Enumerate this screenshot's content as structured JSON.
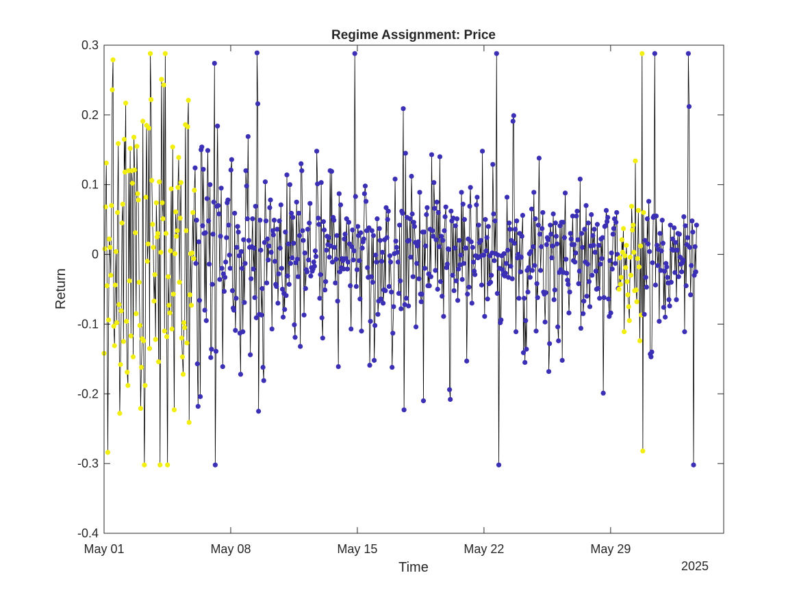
{
  "chart_data": {
    "type": "line",
    "title": "Regime Assignment: Price",
    "xlabel": "Time",
    "ylabel": "Return",
    "x_secondary_label": "2025",
    "xlim": [
      "2025-05-01",
      "2025-06-04T06:00"
    ],
    "ylim": [
      -0.4,
      0.3
    ],
    "grid": false,
    "legend": "none",
    "x_ticks": [
      {
        "value": "2025-05-01",
        "label": "May 01"
      },
      {
        "value": "2025-05-08",
        "label": "May 08"
      },
      {
        "value": "2025-05-15",
        "label": "May 15"
      },
      {
        "value": "2025-05-22",
        "label": "May 22"
      },
      {
        "value": "2025-05-29",
        "label": "May 29"
      }
    ],
    "y_ticks": [
      {
        "value": 0.3,
        "label": "0.3"
      },
      {
        "value": 0.2,
        "label": "0.2"
      },
      {
        "value": 0.1,
        "label": "0.1"
      },
      {
        "value": 0,
        "label": "0"
      },
      {
        "value": -0.1,
        "label": "-0.1"
      },
      {
        "value": -0.2,
        "label": "-0.2"
      },
      {
        "value": -0.3,
        "label": "-0.3"
      },
      {
        "value": -0.4,
        "label": "-0.4"
      }
    ],
    "x_start": "2025-05-01",
    "x_end": "2025-06-02T18:00",
    "line_color": "#000000",
    "regime_colors": {
      "1": "#3a2fb5",
      "2": "#f2ee0f"
    },
    "series": [
      {
        "values": [
          -0.142,
          0.008,
          0.068,
          0.131,
          -0.045,
          -0.284,
          -0.094,
          0.022,
          0.01,
          -0.03,
          0.07,
          0.236,
          0.279,
          -0.103,
          -0.131,
          -0.044,
          0.004,
          -0.098,
          0.06,
          0.159,
          -0.072,
          -0.228,
          -0.158,
          -0.081,
          0.045,
          0.072,
          -0.125,
          0.165,
          0.118,
          0.217,
          -0.096,
          -0.169,
          -0.188,
          0.12,
          -0.038,
          0.152,
          -0.117,
          0.12,
          0.102,
          -0.147,
          0.168,
          0.121,
          0.031,
          -0.085,
          0.155,
          0.087,
          0.078,
          -0.04,
          -0.102,
          -0.221,
          -0.162,
          -0.121,
          0.191,
          -0.124,
          -0.302,
          -0.188,
          0.082,
          0.185,
          -0.01,
          0.015,
          0.181,
          -0.135,
          0.288,
          0.222,
          0.106,
          0.043,
          0.01,
          -0.067,
          -0.029,
          -0.122,
          0.074,
          0.025,
          0.03,
          -0.154,
          0.104,
          -0.302,
          0.003,
          0.251,
          0.074,
          0.051,
          0.243,
          -0.11,
          0.288,
          0.03,
          -0.118,
          -0.302,
          -0.032,
          -0.073,
          -0.084,
          0.005,
          0.094,
          -0.107,
          0.154,
          -0.057,
          -0.223,
          0.001,
          0.061,
          0.026,
          0.034,
          0.096,
          0.139,
          -0.04,
          0.052,
          0.103,
          -0.12,
          -0.147,
          -0.172,
          -0.098,
          -0.105,
          0.186,
          0.034,
          -0.127,
          0.183,
          0.221,
          -0.241,
          -0.058,
          0.001,
          -0.073,
          0.002,
          0.06,
          -0.006,
          0.092,
          0.124,
          -0.013,
          0.049,
          -0.157,
          -0.218,
          0.018,
          -0.066,
          -0.204,
          0.15,
          0.154,
          0.041,
          0.122,
          0.03,
          -0.08,
          0.031,
          -0.095,
          0.08,
          0.149,
          0.048,
          -0.014,
          0.1,
          -0.148,
          -0.136,
          -0.043,
          0.029,
          0.075,
          0.274,
          -0.302,
          -0.139,
          0.069,
          0.184,
          0.07,
          0.058,
          -0.036,
          0.026,
          0.095,
          -0.02,
          -0.161,
          -0.028,
          -0.053,
          -0.033,
          -0.011,
          0.024,
          0.074,
          0.078,
          0.042,
          -0.001,
          -0.02,
          0.121,
          0.136,
          -0.052,
          -0.077,
          -0.08,
          0.059,
          -0.109,
          -0.063,
          0.01,
          0.04,
          0.032,
          -0.002,
          -0.113,
          -0.172,
          0.004,
          -0.02,
          -0.111,
          0.021,
          -0.069,
          -0.013,
          0.12,
          0.098,
          0.051,
          0.169,
          0.02,
          0.01,
          -0.144,
          -0.035,
          0.011,
          0.051,
          -0.021,
          0.009,
          -0.062,
          0.069,
          -0.091,
          0.289,
          0.216,
          -0.225,
          -0.086,
          0.049,
          0.006,
          -0.087,
          -0.049,
          -0.162,
          -0.181,
          0.017,
          0.104,
          0.048,
          -0.041,
          0.022,
          -0.008,
          0.012,
          0.067,
          0.078,
          0.003,
          -0.107,
          0.034,
          0.028,
          0.049,
          -0.01,
          -0.043,
          -0.046,
          0.036,
          -0.07,
          -0.028,
          0.048,
          0.009,
          0.071,
          -0.02,
          -0.05,
          -0.09,
          -0.056,
          -0.079,
          0.032,
          -0.059,
          0.114,
          -0.031,
          0.015,
          -0.043,
          0.1,
          -0.013,
          0.059,
          -0.005,
          0.053,
          0.016,
          -0.101,
          -0.119,
          -0.012,
          0.075,
          -0.007,
          -0.032,
          0.059,
          0.027,
          -0.132,
          0.13,
          0.12,
          0.034,
          0.02,
          -0.087,
          0.002,
          -0.049,
          -0.022,
          -0.025,
          0.036,
          -0.008,
          0.045,
          0.073,
          -0.031,
          -0.019,
          -0.024,
          -0.021,
          -0.011,
          -0.017,
          0.005,
          -0.003,
          0.148,
          0.101,
          0.052,
          0.043,
          -0.063,
          -0.029,
          0.103,
          -0.091,
          -0.12,
          0.047,
          0.035,
          -0.051,
          -0.039,
          0.006,
          0.026,
          0.014,
          0.024,
          -0.004,
          0.12,
          0.012,
          0.119,
          -0.011,
          0.053,
          0.049,
          0.01,
          -0.041,
          -0.007,
          0.027,
          -0.067,
          -0.161,
          0.087,
          -0.025,
          0.071,
          -0.019,
          -0.006,
          -0.009,
          -0.021,
          0.022,
          0.029,
          -0.006,
          0.051,
          -0.021,
          -0.011,
          0.046,
          0.015,
          -0.045,
          -0.107,
          0.011,
          0.035,
          -0.008,
          0.005,
          0.288,
          0.083,
          -0.046,
          -0.022,
          0.04,
          0.027,
          -0.009,
          -0.064,
          0.031,
          -0.11,
          0.009,
          0.018,
          0.022,
          0.087,
          0.098,
          0.076,
          0.034,
          -0.019,
          -0.033,
          0.038,
          -0.159,
          -0.096,
          -0.032,
          0.034,
          -0.04,
          0.027,
          -0.152,
          -0.102,
          -0.001,
          -0.011,
          0.051,
          -0.086,
          -0.067,
          0.037,
          0.02,
          -0.064,
          -0.01,
          0.003,
          -0.07,
          -0.051,
          0.021,
          -0.052,
          0.067,
          0.024,
          0.05,
          0.062,
          -0.046,
          -0.002,
          -0.011,
          -0.054,
          -0.162,
          -0.113,
          -0.075,
          0.001,
          0.108,
          0.019,
          0.01,
          0.003,
          -0.011,
          -0.056,
          0.042,
          -0.038,
          -0.078,
          0.062,
          0.059,
          0.209,
          -0.223,
          -0.072,
          0.145,
          -0.063,
          0.053,
          0.019,
          -0.074,
          0.02,
          0.051,
          -0.004,
          0.112,
          0.058,
          -0.032,
          0.046,
          0.04,
          0.017,
          -0.104,
          -0.013,
          0.012,
          0.018,
          -0.035,
          0.089,
          -0.057,
          -0.068,
          -0.057,
          0.032,
          -0.21,
          0.032,
          -0.02,
          0.012,
          0.057,
          0.067,
          -0.045,
          -0.028,
          -0.045,
          0.036,
          -0.032,
          0.143,
          0.034,
          0.026,
          0.103,
          0.066,
          -0.023,
          0.021,
          0.075,
          -0.05,
          0.06,
          0.011,
          0.14,
          -0.039,
          0.026,
          -0.06,
          0.02,
          -0.089,
          0.034,
          0.054,
          0.068,
          -0.019,
          -0.014,
          0.008,
          0.007,
          -0.194,
          -0.208,
          0.062,
          0.048,
          -0.03,
          0.052,
          -0.052,
          0.009,
          0.041,
          -0.038,
          0.051,
          -0.066,
          -0.021,
          0.02,
          -0.015,
          -0.001,
          0.089,
          -0.036,
          0.072,
          -0.013,
          0.05,
          0.009,
          0.009,
          -0.153,
          -0.057,
          0.022,
          -0.047,
          0.069,
          0.096,
          0.018,
          -0.07,
          0.01,
          -0.011,
          -0.024,
          -0.029,
          -0.002,
          0.071,
          0.082,
          -0.005,
          0.042,
          0.017,
          -0.003,
          0.02,
          -0.044,
          0.148,
          -0.001,
          -0.001,
          -0.089,
          0.05,
          0.005,
          0.024,
          -0.064,
          0.04,
          -0.042,
          -0.002,
          -0.04,
          -0.03,
          0.002,
          0.129,
          0.058,
          -0.009,
          0.048,
          0.001,
          0.288,
          -0.056,
          -0.001,
          -0.302,
          -0.02,
          -0.098,
          -0.094,
          -0.002,
          -0.022,
          -0.029,
          0.001,
          -0.031,
          -0.027,
          -0.013,
          0.082,
          0.006,
          -0.033,
          0.045,
          0.036,
          -0.017,
          0.02,
          -0.035,
          0.191,
          0.199,
          0.016,
          0.036,
          -0.111,
          0.048,
          -0.005,
          0.0,
          -0.063,
          0.03,
          -0.025,
          -0.004,
          0.026,
          0.056,
          -0.141,
          -0.063,
          -0.155,
          -0.095,
          -0.136,
          -0.023,
          -0.054,
          -0.019,
          0.001,
          -0.033,
          0.004,
          0.065,
          -0.023,
          0.011,
          0.089,
          -0.016,
          0.051,
          -0.11,
          -0.042,
          -0.062,
          0.042,
          0.138,
          0.029,
          -0.023,
          0.011,
          0.037,
          0.06,
          -0.054,
          -0.057,
          -0.097,
          -0.055,
          0.014,
          0.024,
          0.021,
          -0.168,
          -0.128,
          0.042,
          0.029,
          -0.005,
          0.012,
          0.058,
          -0.065,
          -0.051,
          0.045,
          0.026,
          0.015,
          -0.104,
          -0.124,
          -0.026,
          0.041,
          -0.022,
          0.046,
          -0.152,
          0.046,
          -0.026,
          0.024,
          0.088,
          -0.007,
          -0.027,
          -0.037,
          -0.043,
          -0.084,
          -0.054,
          0.03,
          0.022,
          0.014,
          0.055,
          -0.009,
          0.014,
          -0.011,
          0.002,
          0.055,
          0.062,
          0.021,
          -0.042,
          -0.024,
          0.108,
          -0.106,
          0.03,
          0.01,
          -0.085,
          -0.067,
          0.036,
          -0.011,
          0.07,
          -0.06,
          -0.014,
          0.045,
          -0.039,
          -0.075,
          0.012,
          0.057,
          -0.03,
          0.027,
          0.013,
          0.036,
          0.003,
          -0.024,
          -0.05,
          0.043,
          -0.049,
          0.013,
          -0.063,
          -0.014,
          0.022,
          -0.006,
          0.024,
          -0.199,
          -0.062,
          0.04,
          0.041,
          0.063,
          0.047,
          0.053,
          -0.064,
          -0.089,
          -0.009,
          -0.084,
          0.002,
          -0.021,
          0.029,
          0.037,
          0.051,
          -0.013,
          0.046,
          0.06,
          0.0,
          -0.049,
          -0.05,
          -0.005,
          -0.043,
          -0.033,
          0.021,
          0.003,
          0.037,
          -0.111,
          -0.002,
          -0.019,
          0.013,
          -0.039,
          -0.058,
          -0.075,
          -0.095,
          -0.004,
          -0.03,
          0.069,
          0.035,
          0.042,
          0.003,
          -0.052,
          0.134,
          -0.051,
          -0.068,
          -0.006,
          0.063,
          -0.018,
          -0.124,
          0.012,
          -0.087,
          0.288,
          -0.282,
          0.06,
          -0.086,
          0.02,
          -0.033,
          -0.047,
          0.051,
          0.015,
          0.076,
          0.004,
          -0.143,
          -0.147,
          -0.14,
          -0.012,
          0.053,
          0.055,
          0.288,
          -0.044,
          0.055,
          0.013,
          -0.016,
          0.007,
          -0.096,
          0.03,
          -0.023,
          0.005,
          0.049,
          0.016,
          -0.076,
          -0.024,
          -0.09,
          -0.013,
          -0.018,
          -0.033,
          -0.041,
          -0.065,
          -0.074,
          0.042,
          -0.04,
          0.007,
          0.022,
          0.006,
          0.038,
          -0.026,
          0.017,
          -0.065,
          0.006,
          0.03,
          -0.032,
          0.029,
          -0.004,
          -0.014,
          -0.025,
          -0.012,
          -0.008,
          0.054,
          -0.111,
          0.041,
          -0.045,
          0.014,
          0.024,
          0.288,
          0.212,
          0.01,
          -0.058,
          -0.016,
          0.048,
          0.032,
          -0.302,
          -0.03,
          0.011,
          -0.025,
          0.042
        ],
        "regime_segments": [
          [
            0,
            122,
            2
          ],
          [
            122,
            690,
            1
          ],
          [
            690,
            724,
            2
          ]
        ]
      }
    ]
  }
}
